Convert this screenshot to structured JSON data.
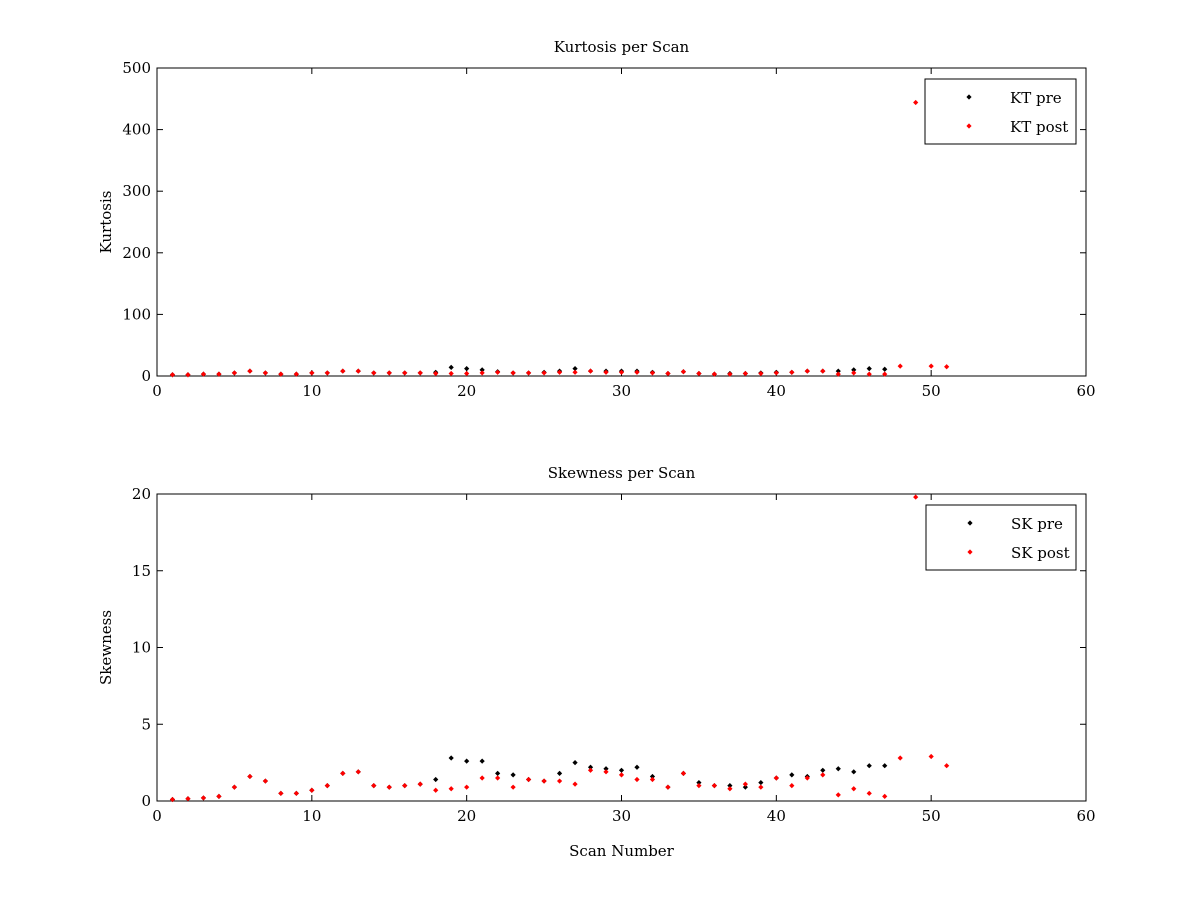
{
  "chart_data": [
    {
      "type": "scatter",
      "title": "Kurtosis per Scan",
      "xlabel": "",
      "ylabel": "Kurtosis",
      "xlim": [
        0,
        60
      ],
      "ylim": [
        0,
        500
      ],
      "xticks": [
        0,
        10,
        20,
        30,
        40,
        50,
        60
      ],
      "yticks": [
        0,
        100,
        200,
        300,
        400,
        500
      ],
      "grid": false,
      "legend_position": "top-right",
      "series": [
        {
          "name": "KT pre",
          "color": "#000000",
          "x": [
            1,
            2,
            3,
            4,
            5,
            6,
            7,
            8,
            9,
            10,
            11,
            12,
            13,
            14,
            15,
            16,
            17,
            18,
            19,
            20,
            21,
            22,
            23,
            24,
            25,
            26,
            27,
            28,
            29,
            30,
            31,
            32,
            33,
            34,
            35,
            36,
            37,
            38,
            39,
            40,
            41,
            42,
            43,
            44,
            45,
            46,
            47
          ],
          "y": [
            2,
            2,
            3,
            3,
            5,
            8,
            5,
            3,
            3,
            5,
            5,
            8,
            8,
            5,
            5,
            5,
            5,
            6,
            14,
            12,
            10,
            7,
            5,
            5,
            6,
            8,
            12,
            8,
            8,
            8,
            8,
            6,
            4,
            7,
            4,
            3,
            4,
            4,
            5,
            6,
            6,
            8,
            8,
            8,
            10,
            12,
            11
          ]
        },
        {
          "name": "KT post",
          "color": "#ff0000",
          "x": [
            1,
            2,
            3,
            4,
            5,
            6,
            7,
            8,
            9,
            10,
            11,
            12,
            13,
            14,
            15,
            16,
            17,
            18,
            19,
            20,
            21,
            22,
            23,
            24,
            25,
            26,
            27,
            28,
            29,
            30,
            31,
            32,
            33,
            34,
            35,
            36,
            37,
            38,
            39,
            40,
            41,
            42,
            43,
            44,
            45,
            46,
            47,
            48,
            49,
            50,
            51
          ],
          "y": [
            2,
            2,
            3,
            3,
            5,
            8,
            5,
            3,
            3,
            5,
            5,
            8,
            8,
            5,
            5,
            5,
            5,
            4,
            4,
            4,
            5,
            6,
            5,
            5,
            5,
            6,
            6,
            8,
            6,
            6,
            6,
            5,
            4,
            7,
            4,
            3,
            3,
            4,
            4,
            5,
            6,
            8,
            8,
            3,
            5,
            3,
            3,
            16,
            444,
            16,
            15
          ]
        }
      ]
    },
    {
      "type": "scatter",
      "title": "Skewness per Scan",
      "xlabel": "Scan Number",
      "ylabel": "Skewness",
      "xlim": [
        0,
        60
      ],
      "ylim": [
        0,
        20
      ],
      "xticks": [
        0,
        10,
        20,
        30,
        40,
        50,
        60
      ],
      "yticks": [
        0,
        5,
        10,
        15,
        20
      ],
      "grid": false,
      "legend_position": "top-right",
      "series": [
        {
          "name": "SK pre",
          "color": "#000000",
          "x": [
            1,
            2,
            3,
            4,
            5,
            6,
            7,
            8,
            9,
            10,
            11,
            12,
            13,
            14,
            15,
            16,
            17,
            18,
            19,
            20,
            21,
            22,
            23,
            24,
            25,
            26,
            27,
            28,
            29,
            30,
            31,
            32,
            33,
            34,
            35,
            36,
            37,
            38,
            39,
            40,
            41,
            42,
            43,
            44,
            45,
            46,
            47
          ],
          "y": [
            0.1,
            0.15,
            0.2,
            0.3,
            0.9,
            1.6,
            1.3,
            0.5,
            0.5,
            0.7,
            1.0,
            1.8,
            1.9,
            1.0,
            0.9,
            1.0,
            1.1,
            1.4,
            2.8,
            2.6,
            2.6,
            1.8,
            1.7,
            1.4,
            1.3,
            1.8,
            2.5,
            2.2,
            2.1,
            2.0,
            2.2,
            1.6,
            0.9,
            1.8,
            1.2,
            1.0,
            1.0,
            0.9,
            1.2,
            1.5,
            1.7,
            1.6,
            2.0,
            2.1,
            1.9,
            2.3,
            2.3
          ]
        },
        {
          "name": "SK post",
          "color": "#ff0000",
          "x": [
            1,
            2,
            3,
            4,
            5,
            6,
            7,
            8,
            9,
            10,
            11,
            12,
            13,
            14,
            15,
            16,
            17,
            18,
            19,
            20,
            21,
            22,
            23,
            24,
            25,
            26,
            27,
            28,
            29,
            30,
            31,
            32,
            33,
            34,
            35,
            36,
            37,
            38,
            39,
            40,
            41,
            42,
            43,
            44,
            45,
            46,
            47,
            48,
            49,
            50,
            51
          ],
          "y": [
            0.1,
            0.15,
            0.2,
            0.3,
            0.9,
            1.6,
            1.3,
            0.5,
            0.5,
            0.7,
            1.0,
            1.8,
            1.9,
            1.0,
            0.9,
            1.0,
            1.1,
            0.7,
            0.8,
            0.9,
            1.5,
            1.5,
            0.9,
            1.4,
            1.3,
            1.3,
            1.1,
            2.0,
            1.9,
            1.7,
            1.4,
            1.4,
            0.9,
            1.8,
            1.0,
            1.0,
            0.8,
            1.1,
            0.9,
            1.5,
            1.0,
            1.5,
            1.7,
            0.4,
            0.8,
            0.5,
            0.3,
            2.8,
            19.8,
            2.9,
            2.3
          ]
        }
      ]
    }
  ]
}
